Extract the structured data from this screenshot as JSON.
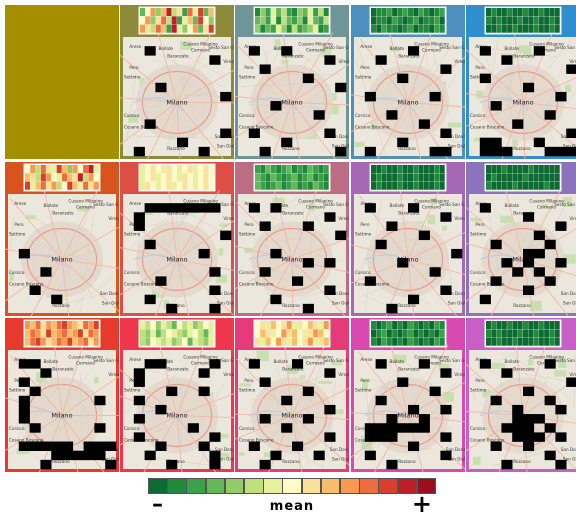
{
  "map": {
    "city_label": "Milano",
    "place_labels": [
      "Arese",
      "Bollate",
      "Cusano Milanino",
      "Cormano",
      "Baranzate",
      "Sesto San Giovanni",
      "Vimo",
      "Pero",
      "Settimo",
      "Corsico",
      "Cesano Boscone",
      "Rozzano",
      "San Donato",
      "San Giuliano"
    ],
    "colors": {
      "base": "#ece7dc",
      "park": "#c8dfb0",
      "road": "#f3b7a4",
      "road_major": "#e99a8a",
      "water": "#b9cde6",
      "urban": "#e3d9cd",
      "black": "#000000"
    }
  },
  "panels": [
    {
      "frame_color": "#a38f00",
      "empty": true
    },
    {
      "frame_color": "#8d8a3c",
      "heat": [
        3,
        7,
        10,
        4,
        9,
        13,
        5,
        8,
        2,
        11,
        6,
        12,
        3,
        9,
        7,
        10,
        4,
        8,
        11,
        5,
        13,
        2,
        6,
        9,
        3,
        12,
        7,
        4,
        10,
        8,
        5,
        11,
        9,
        2,
        13,
        6,
        4,
        7,
        10,
        3,
        8,
        12
      ],
      "black": [
        [
          2,
          1
        ],
        [
          8,
          2
        ],
        [
          3,
          5
        ],
        [
          9,
          6
        ],
        [
          2,
          9
        ],
        [
          9,
          10
        ],
        [
          5,
          11
        ],
        [
          1,
          12
        ],
        [
          7,
          12
        ]
      ]
    },
    {
      "frame_color": "#6e9699",
      "heat": [
        1,
        4,
        2,
        6,
        3,
        5,
        2,
        1,
        4,
        3,
        6,
        2,
        5,
        1,
        3,
        4,
        2,
        6,
        1,
        5,
        3,
        2,
        4,
        1,
        6,
        3,
        2,
        5,
        4,
        1,
        3,
        2,
        6,
        4,
        1,
        5,
        2,
        3,
        4,
        6,
        1,
        2
      ],
      "black": [
        [
          1,
          1
        ],
        [
          4,
          1
        ],
        [
          8,
          2
        ],
        [
          2,
          3
        ],
        [
          6,
          4
        ],
        [
          9,
          5
        ],
        [
          3,
          7
        ],
        [
          7,
          8
        ],
        [
          1,
          10
        ],
        [
          8,
          10
        ],
        [
          4,
          11
        ],
        [
          9,
          12
        ],
        [
          2,
          12
        ]
      ]
    },
    {
      "frame_color": "#4f8fbd",
      "heat": [
        0,
        1,
        1,
        2,
        0,
        1,
        2,
        1,
        0,
        2,
        1,
        0,
        1,
        2,
        0,
        1,
        1,
        0,
        2,
        1,
        0,
        1,
        2,
        0,
        1,
        1,
        2,
        0,
        1,
        0,
        2,
        1,
        1,
        0,
        1,
        2,
        0,
        1,
        1,
        0,
        2,
        1
      ],
      "black": [
        [
          5,
          1
        ],
        [
          2,
          2
        ],
        [
          8,
          3
        ],
        [
          4,
          4
        ],
        [
          1,
          6
        ],
        [
          7,
          6
        ],
        [
          3,
          8
        ],
        [
          6,
          9
        ],
        [
          8,
          10
        ],
        [
          4,
          11
        ],
        [
          1,
          12
        ],
        [
          7,
          12
        ],
        [
          8,
          12
        ]
      ]
    },
    {
      "frame_color": "#2f8fce",
      "heat": [
        0,
        1,
        0,
        0,
        1,
        0,
        0,
        1,
        0,
        0,
        1,
        0,
        0,
        0,
        1,
        0,
        1,
        0,
        0,
        0,
        1,
        0,
        0,
        1,
        0,
        0,
        1,
        0,
        0,
        0,
        1,
        0,
        0,
        1,
        0,
        0,
        0,
        1,
        0,
        0,
        1,
        0
      ],
      "black": [
        [
          1,
          1
        ],
        [
          6,
          1
        ],
        [
          3,
          2
        ],
        [
          9,
          3
        ],
        [
          1,
          4
        ],
        [
          5,
          5
        ],
        [
          8,
          6
        ],
        [
          2,
          7
        ],
        [
          7,
          8
        ],
        [
          4,
          9
        ],
        [
          9,
          10
        ],
        [
          1,
          11
        ],
        [
          2,
          11
        ],
        [
          6,
          11
        ],
        [
          1,
          12
        ],
        [
          2,
          12
        ],
        [
          3,
          12
        ],
        [
          7,
          12
        ],
        [
          8,
          12
        ],
        [
          9,
          12
        ]
      ]
    },
    {
      "frame_color": "#d8541e",
      "heat": [
        7,
        10,
        5,
        11,
        8,
        6,
        12,
        9,
        4,
        10,
        7,
        11,
        13,
        6,
        9,
        8,
        5,
        12,
        10,
        7,
        6,
        11,
        9,
        8,
        13,
        5,
        10,
        7,
        12,
        6,
        9,
        11,
        8,
        10,
        5,
        7,
        12,
        9,
        6,
        11,
        8,
        10
      ],
      "black": [
        [
          1,
          6
        ],
        [
          3,
          8
        ],
        [
          2,
          10
        ],
        [
          4,
          11
        ]
      ]
    },
    {
      "frame_color": "#dd4e45",
      "heat": [
        6,
        7,
        8,
        7,
        6,
        8,
        7,
        6,
        7,
        8,
        6,
        7,
        8,
        7,
        6,
        7,
        8,
        6,
        7,
        8,
        7,
        6,
        8,
        7,
        6,
        7,
        8,
        7,
        6,
        8,
        7,
        6,
        7,
        8,
        6,
        7,
        8,
        7,
        6,
        7,
        8,
        7
      ],
      "black": [
        [
          2,
          1
        ],
        [
          3,
          1
        ],
        [
          4,
          1
        ],
        [
          5,
          1
        ],
        [
          6,
          1
        ],
        [
          7,
          1
        ],
        [
          8,
          1
        ],
        [
          1,
          2
        ],
        [
          1,
          3
        ],
        [
          9,
          4
        ],
        [
          2,
          5
        ],
        [
          7,
          6
        ],
        [
          8,
          8
        ],
        [
          3,
          9
        ],
        [
          8,
          10
        ],
        [
          2,
          11
        ],
        [
          4,
          12
        ],
        [
          8,
          12
        ]
      ]
    },
    {
      "frame_color": "#bd6c86",
      "heat": [
        2,
        1,
        3,
        2,
        1,
        2,
        3,
        1,
        2,
        1,
        3,
        2,
        1,
        2,
        3,
        2,
        1,
        3,
        2,
        1,
        2,
        3,
        1,
        2,
        3,
        1,
        2,
        1,
        3,
        2,
        1,
        2,
        3,
        1,
        2,
        3,
        1,
        2,
        1,
        3,
        2,
        1
      ],
      "black": [
        [
          1,
          1
        ],
        [
          3,
          1
        ],
        [
          8,
          2
        ],
        [
          2,
          3
        ],
        [
          6,
          3
        ],
        [
          9,
          4
        ],
        [
          3,
          6
        ],
        [
          6,
          7
        ],
        [
          8,
          7
        ],
        [
          2,
          8
        ],
        [
          5,
          9
        ],
        [
          8,
          10
        ],
        [
          3,
          11
        ],
        [
          6,
          12
        ]
      ]
    },
    {
      "frame_color": "#a667b6",
      "heat": [
        0,
        0,
        1,
        0,
        0,
        1,
        0,
        0,
        1,
        0,
        0,
        0,
        1,
        0,
        0,
        1,
        0,
        0,
        0,
        1,
        0,
        0,
        1,
        0,
        0,
        0,
        1,
        0,
        0,
        1,
        0,
        0,
        0,
        1,
        0,
        0,
        1,
        0,
        0,
        0,
        1,
        0
      ],
      "black": [
        [
          1,
          1
        ],
        [
          5,
          1
        ],
        [
          8,
          2
        ],
        [
          3,
          3
        ],
        [
          6,
          4
        ],
        [
          2,
          5
        ],
        [
          9,
          6
        ],
        [
          4,
          7
        ],
        [
          7,
          8
        ],
        [
          1,
          9
        ],
        [
          8,
          10
        ],
        [
          5,
          11
        ],
        [
          3,
          12
        ]
      ]
    },
    {
      "frame_color": "#8c74bd",
      "heat": [
        0,
        0,
        0,
        1,
        0,
        0,
        0,
        0,
        1,
        0,
        0,
        0,
        0,
        0,
        0,
        1,
        0,
        0,
        0,
        0,
        0,
        1,
        0,
        0,
        0,
        0,
        0,
        0,
        1,
        0,
        0,
        0,
        0,
        1,
        0,
        0,
        0,
        0,
        0,
        1,
        0,
        0
      ],
      "black": [
        [
          1,
          1
        ],
        [
          5,
          2
        ],
        [
          8,
          3
        ],
        [
          6,
          4
        ],
        [
          2,
          5
        ],
        [
          7,
          5
        ],
        [
          5,
          6
        ],
        [
          6,
          6
        ],
        [
          3,
          7
        ],
        [
          5,
          7
        ],
        [
          8,
          7
        ],
        [
          4,
          8
        ],
        [
          6,
          8
        ],
        [
          2,
          9
        ],
        [
          7,
          9
        ],
        [
          5,
          10
        ],
        [
          1,
          11
        ]
      ]
    },
    {
      "frame_color": "#e83a2c",
      "heat": [
        10,
        9,
        11,
        8,
        10,
        9,
        11,
        12,
        10,
        9,
        8,
        11,
        10,
        12,
        9,
        11,
        10,
        8,
        12,
        9,
        10,
        11,
        9,
        10,
        12,
        8,
        11,
        10,
        9,
        11,
        12,
        10,
        8,
        9,
        11,
        10,
        12,
        9,
        10,
        11,
        8,
        10
      ],
      "black": [
        [
          1,
          1
        ],
        [
          2,
          1
        ],
        [
          3,
          2
        ],
        [
          1,
          3
        ],
        [
          2,
          4
        ],
        [
          1,
          5
        ],
        [
          8,
          5
        ],
        [
          1,
          6
        ],
        [
          1,
          7
        ],
        [
          2,
          8
        ],
        [
          8,
          8
        ],
        [
          1,
          10
        ],
        [
          2,
          10
        ],
        [
          3,
          10
        ],
        [
          4,
          10
        ],
        [
          5,
          10
        ],
        [
          7,
          10
        ],
        [
          8,
          10
        ],
        [
          9,
          10
        ],
        [
          4,
          11
        ],
        [
          5,
          11
        ],
        [
          6,
          11
        ],
        [
          7,
          11
        ],
        [
          8,
          11
        ],
        [
          3,
          12
        ],
        [
          9,
          12
        ]
      ]
    },
    {
      "frame_color": "#f0364c",
      "heat": [
        6,
        5,
        7,
        4,
        6,
        5,
        3,
        7,
        5,
        6,
        4,
        5,
        7,
        6,
        5,
        4,
        6,
        3,
        5,
        7,
        6,
        5,
        4,
        6,
        7,
        5,
        3,
        6,
        5,
        4,
        7,
        6,
        5,
        6,
        4,
        5,
        7,
        3,
        6,
        5,
        4,
        6
      ],
      "black": [
        [
          2,
          1
        ],
        [
          3,
          1
        ],
        [
          8,
          1
        ],
        [
          1,
          2
        ],
        [
          7,
          2
        ],
        [
          1,
          3
        ],
        [
          4,
          4
        ],
        [
          7,
          4
        ],
        [
          1,
          5
        ],
        [
          3,
          6
        ],
        [
          1,
          7
        ],
        [
          6,
          8
        ],
        [
          1,
          9
        ],
        [
          8,
          9
        ],
        [
          3,
          10
        ],
        [
          7,
          10
        ],
        [
          2,
          11
        ],
        [
          8,
          11
        ],
        [
          4,
          12
        ],
        [
          8,
          12
        ]
      ]
    },
    {
      "frame_color": "#e63b79",
      "heat": [
        7,
        8,
        6,
        9,
        7,
        8,
        10,
        6,
        8,
        7,
        9,
        8,
        6,
        10,
        7,
        9,
        8,
        6,
        7,
        10,
        8,
        9,
        7,
        6,
        8,
        10,
        9,
        7,
        8,
        6,
        9,
        7,
        10,
        8,
        6,
        9,
        7,
        8,
        10,
        6,
        8,
        9
      ],
      "black": [
        [
          1,
          1
        ],
        [
          5,
          1
        ],
        [
          8,
          2
        ],
        [
          2,
          3
        ],
        [
          6,
          4
        ],
        [
          4,
          5
        ],
        [
          8,
          6
        ],
        [
          2,
          7
        ],
        [
          6,
          7
        ],
        [
          4,
          8
        ],
        [
          8,
          9
        ],
        [
          1,
          10
        ],
        [
          5,
          10
        ],
        [
          3,
          11
        ],
        [
          7,
          11
        ],
        [
          2,
          12
        ]
      ]
    },
    {
      "frame_color": "#d64ab2",
      "heat": [
        1,
        0,
        1,
        2,
        0,
        1,
        0,
        2,
        1,
        0,
        1,
        0,
        2,
        1,
        0,
        1,
        2,
        0,
        1,
        0,
        1,
        2,
        0,
        1,
        0,
        1,
        0,
        2,
        1,
        0,
        2,
        1,
        0,
        1,
        0,
        2,
        1,
        0,
        1,
        0,
        2,
        1
      ],
      "black": [
        [
          2,
          1
        ],
        [
          6,
          1
        ],
        [
          8,
          2
        ],
        [
          4,
          3
        ],
        [
          7,
          4
        ],
        [
          2,
          5
        ],
        [
          5,
          6
        ],
        [
          8,
          6
        ],
        [
          3,
          7
        ],
        [
          6,
          7
        ],
        [
          1,
          8
        ],
        [
          2,
          8
        ],
        [
          3,
          8
        ],
        [
          4,
          8
        ],
        [
          5,
          8
        ],
        [
          6,
          8
        ],
        [
          1,
          9
        ],
        [
          2,
          9
        ],
        [
          3,
          9
        ],
        [
          8,
          9
        ],
        [
          5,
          10
        ],
        [
          1,
          11
        ],
        [
          8,
          11
        ],
        [
          3,
          12
        ]
      ]
    },
    {
      "frame_color": "#c85fc7",
      "heat": [
        0,
        1,
        0,
        0,
        1,
        0,
        0,
        1,
        0,
        0,
        1,
        0,
        0,
        0,
        1,
        0,
        1,
        0,
        0,
        0,
        1,
        0,
        0,
        1,
        0,
        0,
        1,
        0,
        0,
        0,
        1,
        0,
        0,
        1,
        0,
        0,
        0,
        1,
        0,
        0,
        1,
        0
      ],
      "black": [
        [
          1,
          1
        ],
        [
          7,
          1
        ],
        [
          3,
          2
        ],
        [
          9,
          3
        ],
        [
          5,
          4
        ],
        [
          2,
          5
        ],
        [
          7,
          5
        ],
        [
          4,
          6
        ],
        [
          8,
          6
        ],
        [
          4,
          7
        ],
        [
          5,
          7
        ],
        [
          6,
          7
        ],
        [
          3,
          8
        ],
        [
          4,
          8
        ],
        [
          5,
          8
        ],
        [
          7,
          8
        ],
        [
          4,
          9
        ],
        [
          5,
          9
        ],
        [
          6,
          9
        ],
        [
          8,
          9
        ],
        [
          2,
          10
        ],
        [
          5,
          10
        ],
        [
          7,
          11
        ],
        [
          3,
          12
        ],
        [
          8,
          12
        ]
      ]
    }
  ],
  "legend": {
    "colors": [
      "#0c6a32",
      "#1f8a3c",
      "#3aa04a",
      "#65b85a",
      "#92cc68",
      "#bfe07c",
      "#e7f09a",
      "#fffbc8",
      "#fde09a",
      "#fcbd6a",
      "#f7994e",
      "#ee6d3e",
      "#d9402c",
      "#bf1e26",
      "#9a0f1e"
    ],
    "min_label": "–",
    "max_label": "+",
    "mid_label": "mean"
  }
}
